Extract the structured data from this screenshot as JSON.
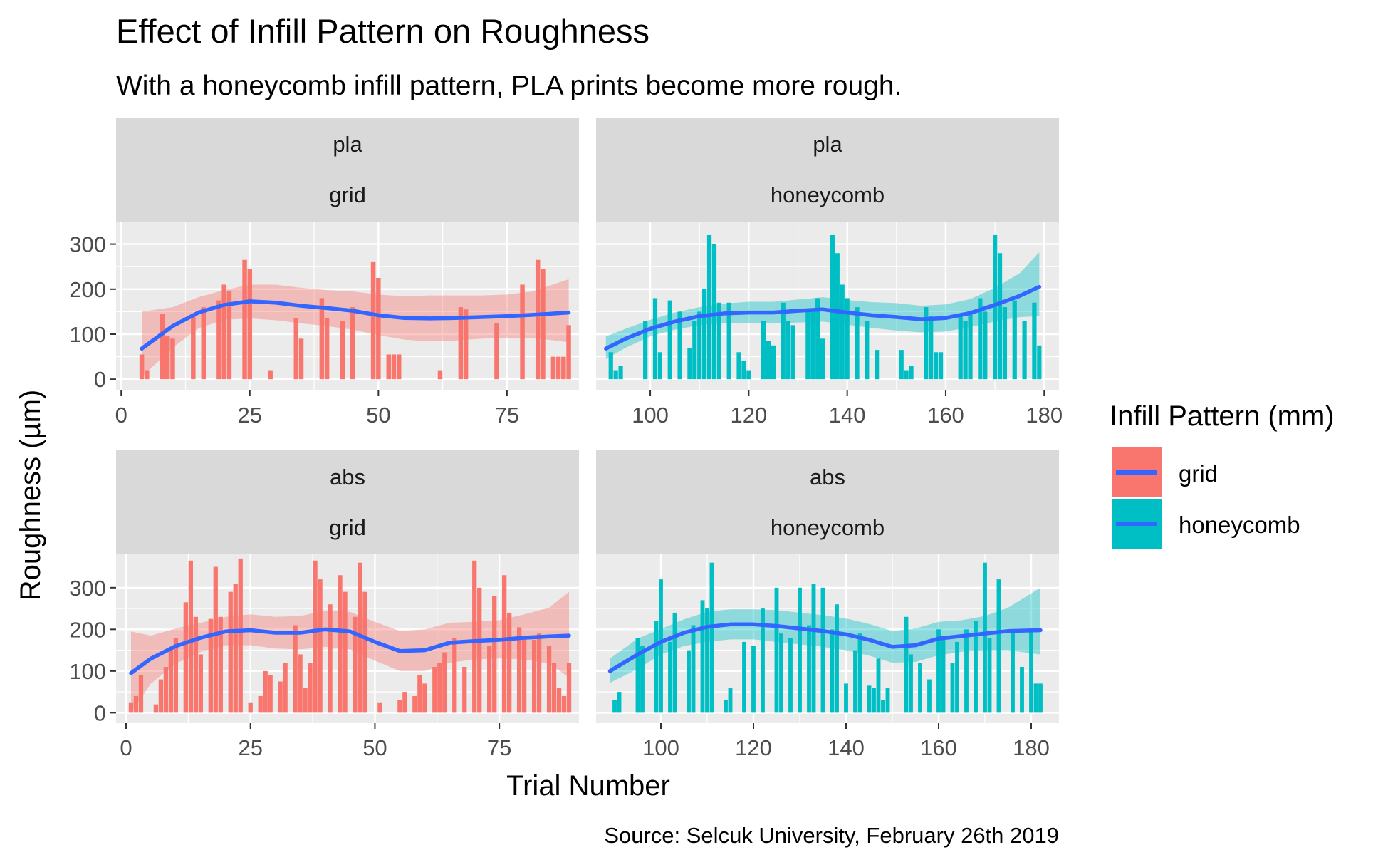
{
  "title": "Effect of Infill Pattern on Roughness",
  "subtitle": "With a honeycomb infill pattern, PLA prints become more rough.",
  "xlabel": "Trial Number",
  "ylabel": "Roughness (µm)",
  "caption": "Source: Selcuk University, February 26th 2019",
  "legend": {
    "title": "Infill Pattern (mm)",
    "items": [
      {
        "label": "grid",
        "color": "#F8766D"
      },
      {
        "label": "honeycomb",
        "color": "#00BFC4"
      }
    ]
  },
  "colors": {
    "grid": "#F8766D",
    "honeycomb": "#00BFC4",
    "smooth": "#3366FF",
    "panel_bg": "#EBEBEB",
    "strip_bg": "#D9D9D9",
    "gridline": "#FFFFFF"
  },
  "chart_data": [
    {
      "type": "bar",
      "facet": [
        "pla",
        "grid"
      ],
      "fill": "grid",
      "xlim": [
        -1,
        89
      ],
      "ylim": [
        -25,
        350
      ],
      "xticks": [
        0,
        25,
        50,
        75
      ],
      "yticks": [
        0,
        100,
        200,
        300
      ],
      "bars": [
        {
          "x": 4,
          "y": 55
        },
        {
          "x": 5,
          "y": 20
        },
        {
          "x": 8,
          "y": 145
        },
        {
          "x": 9,
          "y": 95
        },
        {
          "x": 10,
          "y": 90
        },
        {
          "x": 14,
          "y": 140
        },
        {
          "x": 16,
          "y": 160
        },
        {
          "x": 19,
          "y": 175
        },
        {
          "x": 20,
          "y": 210
        },
        {
          "x": 21,
          "y": 195
        },
        {
          "x": 24,
          "y": 265
        },
        {
          "x": 25,
          "y": 245
        },
        {
          "x": 29,
          "y": 20
        },
        {
          "x": 34,
          "y": 135
        },
        {
          "x": 35,
          "y": 90
        },
        {
          "x": 39,
          "y": 180
        },
        {
          "x": 40,
          "y": 135
        },
        {
          "x": 43,
          "y": 130
        },
        {
          "x": 45,
          "y": 160
        },
        {
          "x": 49,
          "y": 260
        },
        {
          "x": 50,
          "y": 225
        },
        {
          "x": 52,
          "y": 55
        },
        {
          "x": 53,
          "y": 55
        },
        {
          "x": 54,
          "y": 55
        },
        {
          "x": 62,
          "y": 20
        },
        {
          "x": 66,
          "y": 160
        },
        {
          "x": 67,
          "y": 155
        },
        {
          "x": 73,
          "y": 125
        },
        {
          "x": 78,
          "y": 210
        },
        {
          "x": 81,
          "y": 265
        },
        {
          "x": 82,
          "y": 245
        },
        {
          "x": 84,
          "y": 50
        },
        {
          "x": 85,
          "y": 50
        },
        {
          "x": 86,
          "y": 50
        },
        {
          "x": 87,
          "y": 120
        }
      ],
      "smooth": {
        "x": [
          4,
          10,
          15,
          20,
          25,
          30,
          35,
          40,
          45,
          50,
          55,
          60,
          65,
          70,
          75,
          80,
          87
        ],
        "y": [
          68,
          118,
          148,
          165,
          173,
          170,
          163,
          158,
          152,
          142,
          136,
          135,
          136,
          138,
          140,
          143,
          148
        ],
        "lower": [
          5,
          70,
          113,
          132,
          135,
          131,
          124,
          118,
          110,
          98,
          88,
          84,
          86,
          90,
          92,
          92,
          82
        ],
        "upper": [
          150,
          160,
          182,
          198,
          210,
          210,
          203,
          198,
          195,
          188,
          184,
          186,
          186,
          186,
          188,
          195,
          222
        ]
      }
    },
    {
      "type": "bar",
      "facet": [
        "pla",
        "honeycomb"
      ],
      "fill": "honeycomb",
      "xlim": [
        89,
        183
      ],
      "ylim": [
        -25,
        350
      ],
      "xticks": [
        100,
        120,
        140,
        160,
        180
      ],
      "yticks": [
        0,
        100,
        200,
        300
      ],
      "bars": [
        {
          "x": 92,
          "y": 60
        },
        {
          "x": 93,
          "y": 20
        },
        {
          "x": 94,
          "y": 30
        },
        {
          "x": 99,
          "y": 130
        },
        {
          "x": 101,
          "y": 180
        },
        {
          "x": 102,
          "y": 60
        },
        {
          "x": 104,
          "y": 175
        },
        {
          "x": 106,
          "y": 150
        },
        {
          "x": 108,
          "y": 70
        },
        {
          "x": 109,
          "y": 130
        },
        {
          "x": 110,
          "y": 150
        },
        {
          "x": 111,
          "y": 200
        },
        {
          "x": 112,
          "y": 320
        },
        {
          "x": 113,
          "y": 300
        },
        {
          "x": 114,
          "y": 170
        },
        {
          "x": 116,
          "y": 170
        },
        {
          "x": 118,
          "y": 60
        },
        {
          "x": 119,
          "y": 40
        },
        {
          "x": 120,
          "y": 20
        },
        {
          "x": 123,
          "y": 130
        },
        {
          "x": 124,
          "y": 85
        },
        {
          "x": 125,
          "y": 75
        },
        {
          "x": 127,
          "y": 170
        },
        {
          "x": 128,
          "y": 130
        },
        {
          "x": 129,
          "y": 120
        },
        {
          "x": 132,
          "y": 150
        },
        {
          "x": 133,
          "y": 150
        },
        {
          "x": 134,
          "y": 180
        },
        {
          "x": 135,
          "y": 90
        },
        {
          "x": 137,
          "y": 320
        },
        {
          "x": 138,
          "y": 280
        },
        {
          "x": 139,
          "y": 210
        },
        {
          "x": 140,
          "y": 180
        },
        {
          "x": 142,
          "y": 160
        },
        {
          "x": 144,
          "y": 130
        },
        {
          "x": 146,
          "y": 65
        },
        {
          "x": 151,
          "y": 65
        },
        {
          "x": 152,
          "y": 20
        },
        {
          "x": 153,
          "y": 30
        },
        {
          "x": 156,
          "y": 160
        },
        {
          "x": 157,
          "y": 140
        },
        {
          "x": 158,
          "y": 60
        },
        {
          "x": 159,
          "y": 60
        },
        {
          "x": 163,
          "y": 140
        },
        {
          "x": 164,
          "y": 130
        },
        {
          "x": 165,
          "y": 150
        },
        {
          "x": 167,
          "y": 180
        },
        {
          "x": 168,
          "y": 150
        },
        {
          "x": 170,
          "y": 320
        },
        {
          "x": 171,
          "y": 280
        },
        {
          "x": 172,
          "y": 160
        },
        {
          "x": 174,
          "y": 175
        },
        {
          "x": 176,
          "y": 130
        },
        {
          "x": 178,
          "y": 170
        },
        {
          "x": 179,
          "y": 75
        }
      ],
      "smooth": {
        "x": [
          91,
          95,
          100,
          105,
          110,
          115,
          120,
          125,
          130,
          135,
          140,
          145,
          150,
          155,
          160,
          165,
          170,
          175,
          179
        ],
        "y": [
          68,
          90,
          112,
          128,
          140,
          146,
          148,
          148,
          152,
          155,
          148,
          142,
          138,
          133,
          136,
          147,
          165,
          185,
          205
        ],
        "lower": [
          45,
          70,
          95,
          110,
          120,
          124,
          124,
          124,
          126,
          128,
          121,
          114,
          108,
          104,
          106,
          116,
          128,
          138,
          140
        ],
        "upper": [
          95,
          112,
          132,
          148,
          160,
          168,
          172,
          172,
          177,
          182,
          176,
          171,
          169,
          163,
          166,
          178,
          203,
          235,
          282
        ]
      }
    },
    {
      "type": "bar",
      "facet": [
        "abs",
        "grid"
      ],
      "fill": "grid",
      "xlim": [
        -2,
        91
      ],
      "ylim": [
        -25,
        380
      ],
      "xticks": [
        0,
        25,
        50,
        75
      ],
      "yticks": [
        0,
        100,
        200,
        300
      ],
      "bars": [
        {
          "x": 1,
          "y": 25
        },
        {
          "x": 2,
          "y": 40
        },
        {
          "x": 3,
          "y": 90
        },
        {
          "x": 6,
          "y": 20
        },
        {
          "x": 7,
          "y": 80
        },
        {
          "x": 8,
          "y": 110
        },
        {
          "x": 9,
          "y": 150
        },
        {
          "x": 10,
          "y": 180
        },
        {
          "x": 12,
          "y": 265
        },
        {
          "x": 13,
          "y": 365
        },
        {
          "x": 14,
          "y": 230
        },
        {
          "x": 15,
          "y": 140
        },
        {
          "x": 17,
          "y": 225
        },
        {
          "x": 18,
          "y": 350
        },
        {
          "x": 19,
          "y": 230
        },
        {
          "x": 21,
          "y": 290
        },
        {
          "x": 22,
          "y": 310
        },
        {
          "x": 23,
          "y": 370
        },
        {
          "x": 25,
          "y": 25
        },
        {
          "x": 27,
          "y": 40
        },
        {
          "x": 28,
          "y": 100
        },
        {
          "x": 29,
          "y": 90
        },
        {
          "x": 31,
          "y": 75
        },
        {
          "x": 32,
          "y": 120
        },
        {
          "x": 34,
          "y": 210
        },
        {
          "x": 35,
          "y": 140
        },
        {
          "x": 36,
          "y": 60
        },
        {
          "x": 37,
          "y": 120
        },
        {
          "x": 38,
          "y": 365
        },
        {
          "x": 39,
          "y": 320
        },
        {
          "x": 41,
          "y": 260
        },
        {
          "x": 43,
          "y": 330
        },
        {
          "x": 44,
          "y": 290
        },
        {
          "x": 46,
          "y": 230
        },
        {
          "x": 47,
          "y": 360
        },
        {
          "x": 48,
          "y": 290
        },
        {
          "x": 51,
          "y": 25
        },
        {
          "x": 55,
          "y": 30
        },
        {
          "x": 56,
          "y": 50
        },
        {
          "x": 58,
          "y": 40
        },
        {
          "x": 59,
          "y": 90
        },
        {
          "x": 60,
          "y": 70
        },
        {
          "x": 62,
          "y": 110
        },
        {
          "x": 63,
          "y": 120
        },
        {
          "x": 64,
          "y": 145
        },
        {
          "x": 66,
          "y": 180
        },
        {
          "x": 68,
          "y": 110
        },
        {
          "x": 70,
          "y": 365
        },
        {
          "x": 71,
          "y": 300
        },
        {
          "x": 73,
          "y": 160
        },
        {
          "x": 74,
          "y": 280
        },
        {
          "x": 76,
          "y": 330
        },
        {
          "x": 77,
          "y": 240
        },
        {
          "x": 79,
          "y": 205
        },
        {
          "x": 80,
          "y": 180
        },
        {
          "x": 82,
          "y": 175
        },
        {
          "x": 83,
          "y": 190
        },
        {
          "x": 85,
          "y": 160
        },
        {
          "x": 86,
          "y": 120
        },
        {
          "x": 87,
          "y": 60
        },
        {
          "x": 88,
          "y": 40
        },
        {
          "x": 89,
          "y": 120
        }
      ],
      "smooth": {
        "x": [
          1,
          5,
          10,
          15,
          20,
          25,
          30,
          35,
          40,
          45,
          50,
          55,
          60,
          65,
          70,
          75,
          80,
          85,
          89
        ],
        "y": [
          95,
          130,
          160,
          180,
          195,
          198,
          192,
          192,
          200,
          195,
          170,
          148,
          150,
          168,
          172,
          175,
          180,
          183,
          185
        ],
        "lower": [
          0,
          70,
          118,
          146,
          162,
          162,
          154,
          152,
          158,
          152,
          125,
          100,
          100,
          120,
          128,
          130,
          128,
          118,
          85
        ],
        "upper": [
          195,
          185,
          202,
          216,
          230,
          236,
          230,
          232,
          245,
          242,
          218,
          196,
          200,
          216,
          218,
          222,
          236,
          252,
          290
        ]
      }
    },
    {
      "type": "bar",
      "facet": [
        "abs",
        "honeycomb"
      ],
      "fill": "honeycomb",
      "xlim": [
        86,
        186
      ],
      "ylim": [
        -25,
        380
      ],
      "xticks": [
        100,
        120,
        140,
        160,
        180
      ],
      "yticks": [
        0,
        100,
        200,
        300
      ],
      "bars": [
        {
          "x": 90,
          "y": 30
        },
        {
          "x": 91,
          "y": 50
        },
        {
          "x": 95,
          "y": 180
        },
        {
          "x": 96,
          "y": 160
        },
        {
          "x": 99,
          "y": 220
        },
        {
          "x": 100,
          "y": 320
        },
        {
          "x": 102,
          "y": 170
        },
        {
          "x": 103,
          "y": 240
        },
        {
          "x": 106,
          "y": 150
        },
        {
          "x": 107,
          "y": 210
        },
        {
          "x": 109,
          "y": 270
        },
        {
          "x": 110,
          "y": 250
        },
        {
          "x": 111,
          "y": 360
        },
        {
          "x": 114,
          "y": 30
        },
        {
          "x": 115,
          "y": 60
        },
        {
          "x": 118,
          "y": 170
        },
        {
          "x": 120,
          "y": 160
        },
        {
          "x": 122,
          "y": 250
        },
        {
          "x": 125,
          "y": 300
        },
        {
          "x": 126,
          "y": 190
        },
        {
          "x": 128,
          "y": 180
        },
        {
          "x": 130,
          "y": 300
        },
        {
          "x": 132,
          "y": 210
        },
        {
          "x": 133,
          "y": 310
        },
        {
          "x": 135,
          "y": 300
        },
        {
          "x": 137,
          "y": 200
        },
        {
          "x": 138,
          "y": 260
        },
        {
          "x": 140,
          "y": 70
        },
        {
          "x": 142,
          "y": 150
        },
        {
          "x": 143,
          "y": 190
        },
        {
          "x": 145,
          "y": 65
        },
        {
          "x": 146,
          "y": 60
        },
        {
          "x": 147,
          "y": 130
        },
        {
          "x": 148,
          "y": 30
        },
        {
          "x": 149,
          "y": 60
        },
        {
          "x": 153,
          "y": 230
        },
        {
          "x": 154,
          "y": 140
        },
        {
          "x": 156,
          "y": 120
        },
        {
          "x": 158,
          "y": 80
        },
        {
          "x": 160,
          "y": 200
        },
        {
          "x": 161,
          "y": 180
        },
        {
          "x": 163,
          "y": 120
        },
        {
          "x": 164,
          "y": 170
        },
        {
          "x": 166,
          "y": 200
        },
        {
          "x": 168,
          "y": 220
        },
        {
          "x": 170,
          "y": 360
        },
        {
          "x": 171,
          "y": 180
        },
        {
          "x": 173,
          "y": 320
        },
        {
          "x": 176,
          "y": 200
        },
        {
          "x": 178,
          "y": 110
        },
        {
          "x": 180,
          "y": 200
        },
        {
          "x": 181,
          "y": 70
        },
        {
          "x": 182,
          "y": 70
        }
      ],
      "smooth": {
        "x": [
          89,
          95,
          100,
          105,
          110,
          115,
          120,
          125,
          130,
          135,
          140,
          145,
          150,
          155,
          160,
          165,
          170,
          175,
          182
        ],
        "y": [
          100,
          140,
          170,
          192,
          206,
          212,
          212,
          208,
          202,
          196,
          188,
          175,
          158,
          162,
          178,
          184,
          190,
          196,
          198
        ],
        "lower": [
          72,
          105,
          140,
          160,
          170,
          176,
          176,
          170,
          164,
          158,
          150,
          137,
          120,
          122,
          138,
          146,
          150,
          150,
          140
        ],
        "upper": [
          130,
          178,
          201,
          224,
          242,
          248,
          248,
          246,
          240,
          234,
          226,
          213,
          196,
          202,
          218,
          222,
          232,
          252,
          300
        ]
      }
    }
  ]
}
